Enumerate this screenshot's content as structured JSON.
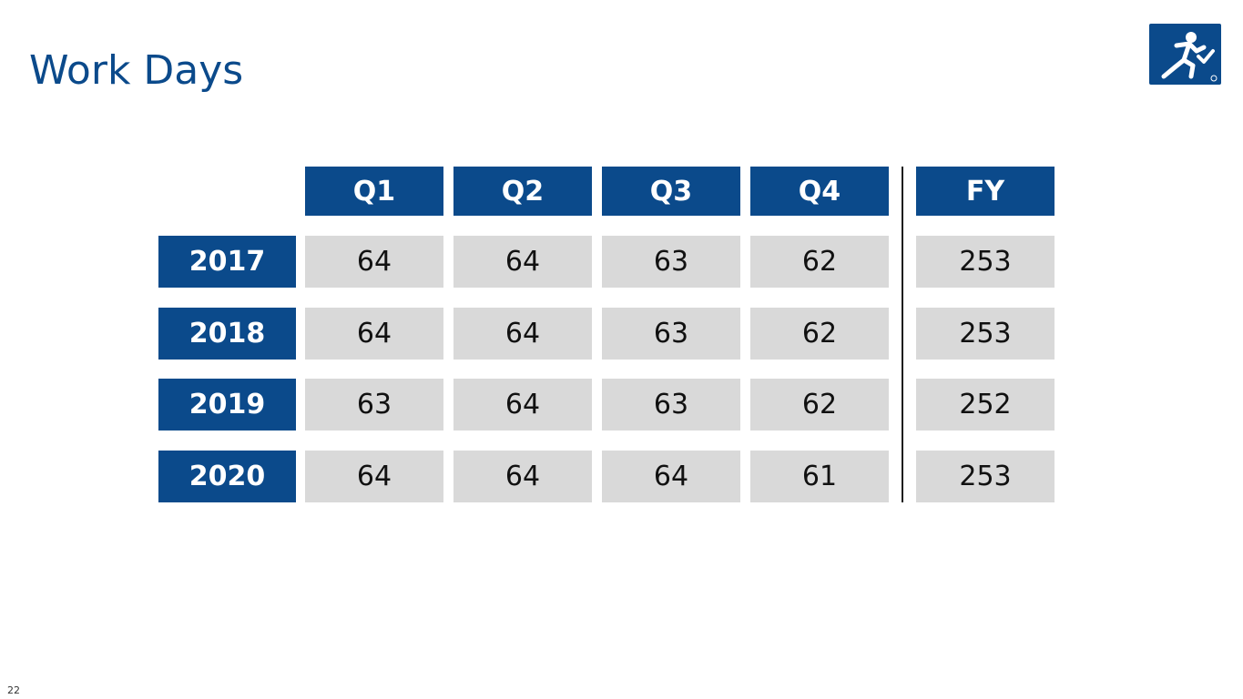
{
  "slide": {
    "title": "Work Days",
    "page_number": "22",
    "logo": "running-figure-logo-icon"
  },
  "colors": {
    "accent": "#0b4a8b",
    "cell_fill": "#d9d9d9",
    "text_dark": "#111111"
  },
  "table": {
    "columns": [
      "Q1",
      "Q2",
      "Q3",
      "Q4",
      "FY"
    ],
    "rows": [
      {
        "year": "2017",
        "values": [
          "64",
          "64",
          "63",
          "62",
          "253"
        ]
      },
      {
        "year": "2018",
        "values": [
          "64",
          "64",
          "63",
          "62",
          "253"
        ]
      },
      {
        "year": "2019",
        "values": [
          "63",
          "64",
          "63",
          "62",
          "252"
        ]
      },
      {
        "year": "2020",
        "values": [
          "64",
          "64",
          "64",
          "61",
          "253"
        ]
      }
    ]
  }
}
